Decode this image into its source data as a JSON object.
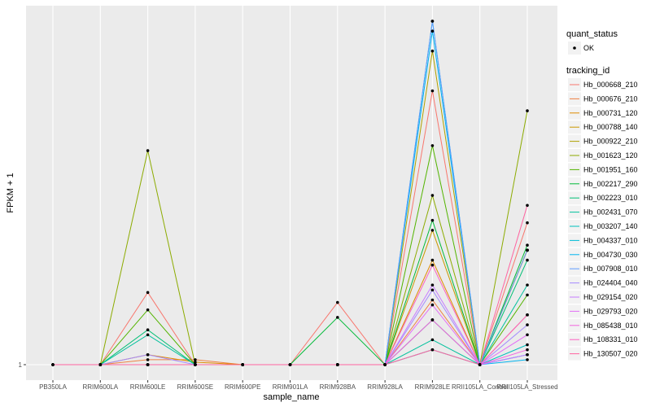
{
  "chart_data": {
    "type": "line",
    "xlabel": "sample_name",
    "ylabel": "FPKM + 1",
    "y_tick_labels": [
      "1"
    ],
    "ylim": [
      1,
      7.9
    ],
    "grid": true,
    "legend_position": "right",
    "categories": [
      "PB350LA",
      "RRIM600LA",
      "RRIM600LE",
      "RRIM600SE",
      "RRIM600PE",
      "RRIM901LA",
      "RRIM928BA",
      "RRIM928LA",
      "RRIM928LE",
      "RRII105LA_Control",
      "RRII105LA_Stressed"
    ],
    "legend_shape": {
      "title": "quant_status",
      "items": [
        "OK"
      ]
    },
    "legend_color_title": "tracking_id",
    "series": [
      {
        "name": "Hb_000668_210",
        "color": "#F8766D",
        "values": [
          1,
          1,
          2.45,
          1,
          1,
          1,
          2.25,
          1,
          6.5,
          1,
          3.85
        ]
      },
      {
        "name": "Hb_000676_210",
        "color": "#EE8043",
        "values": [
          1,
          1,
          1.1,
          1.1,
          1,
          1,
          1,
          1,
          2.3,
          1,
          2.0
        ]
      },
      {
        "name": "Hb_000731_120",
        "color": "#DE8C00",
        "values": [
          1,
          1,
          1.2,
          1.05,
          1,
          1,
          1,
          1,
          3.1,
          1,
          3.3
        ]
      },
      {
        "name": "Hb_000788_140",
        "color": "#C99800",
        "values": [
          1,
          1,
          1.0,
          1.0,
          1,
          1,
          1,
          1,
          3.7,
          1,
          3.3
        ]
      },
      {
        "name": "Hb_000922_210",
        "color": "#AFA100",
        "values": [
          1,
          1,
          1.0,
          1.0,
          1,
          1,
          1,
          1,
          7.3,
          1,
          3.3
        ]
      },
      {
        "name": "Hb_001623_120",
        "color": "#8CAB00",
        "values": [
          1,
          1,
          5.3,
          1,
          1,
          1,
          1,
          1,
          4.4,
          1,
          6.1
        ]
      },
      {
        "name": "Hb_001951_160",
        "color": "#53B400",
        "values": [
          1,
          1,
          2.1,
          1,
          1,
          1,
          1,
          1,
          5.4,
          1,
          2.4
        ]
      },
      {
        "name": "Hb_002217_290",
        "color": "#00BA38",
        "values": [
          1,
          1,
          1.0,
          1.0,
          1,
          1,
          1.95,
          1,
          3.9,
          1,
          3.4
        ]
      },
      {
        "name": "Hb_002223_010",
        "color": "#00BF74",
        "values": [
          1,
          1,
          1.7,
          1.0,
          1,
          1,
          1,
          1,
          1.9,
          1,
          3.1
        ]
      },
      {
        "name": "Hb_002431_070",
        "color": "#00C19C",
        "values": [
          1,
          1,
          1.6,
          1.0,
          1,
          1,
          1,
          1,
          1.5,
          1,
          2.6
        ]
      },
      {
        "name": "Hb_003207_140",
        "color": "#00C0BC",
        "values": [
          1,
          1,
          1.0,
          1.0,
          1,
          1,
          1,
          1,
          1.3,
          1,
          1.4
        ]
      },
      {
        "name": "Hb_004337_010",
        "color": "#00BDD6",
        "values": [
          1,
          1,
          1.0,
          1.0,
          1,
          1,
          1,
          1,
          7.9,
          1,
          1.2
        ]
      },
      {
        "name": "Hb_004730_030",
        "color": "#00B4EF",
        "values": [
          1,
          1,
          1.0,
          1.0,
          1,
          1,
          1,
          1,
          7.7,
          1,
          1.1
        ]
      },
      {
        "name": "Hb_007908_010",
        "color": "#619CFF",
        "values": [
          1,
          1,
          1.0,
          1.0,
          1,
          1,
          1,
          1,
          7.9,
          1,
          3.3
        ]
      },
      {
        "name": "Hb_024404_040",
        "color": "#A58AFF",
        "values": [
          1,
          1,
          1.2,
          1.0,
          1,
          1,
          1,
          1,
          2.5,
          1,
          1.8
        ]
      },
      {
        "name": "Hb_029154_020",
        "color": "#C77CFF",
        "values": [
          1,
          1,
          1.0,
          1.0,
          1,
          1,
          1,
          1,
          2.6,
          1,
          1.2
        ]
      },
      {
        "name": "Hb_029793_020",
        "color": "#E36EF6",
        "values": [
          1,
          1,
          1.0,
          1.0,
          1,
          1,
          1,
          1,
          2.2,
          1,
          1.6
        ]
      },
      {
        "name": "Hb_085438_010",
        "color": "#F265DF",
        "values": [
          1,
          1,
          1.0,
          1.0,
          1,
          1,
          1,
          1,
          1.9,
          1,
          1.3
        ]
      },
      {
        "name": "Hb_108331_010",
        "color": "#FC61C1",
        "values": [
          1,
          1,
          1.0,
          1.0,
          1,
          1,
          1,
          1,
          3.0,
          1,
          2.0
        ]
      },
      {
        "name": "Hb_130507_020",
        "color": "#FF64A0",
        "values": [
          1,
          1,
          1.0,
          1.0,
          1,
          1,
          1,
          1,
          1.3,
          1,
          4.2
        ]
      }
    ]
  }
}
